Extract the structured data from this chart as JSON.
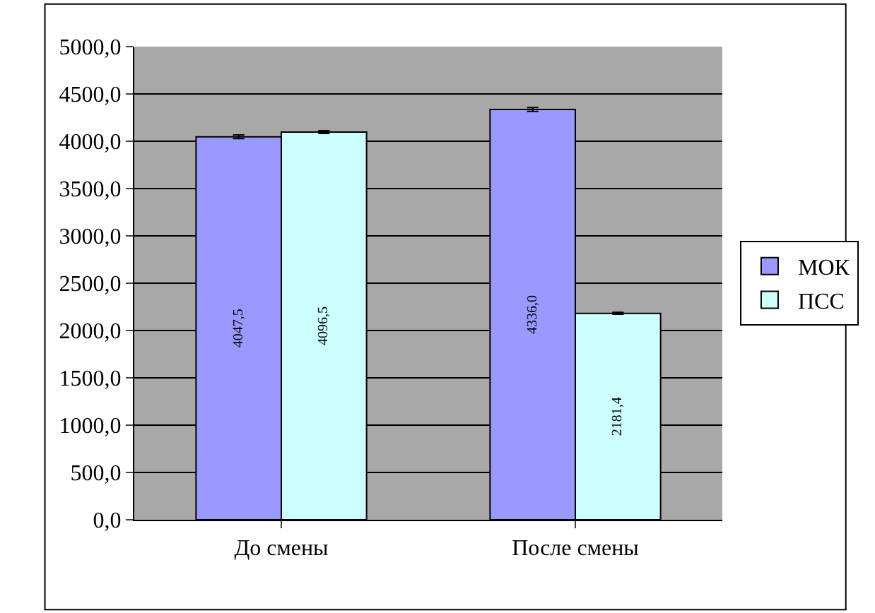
{
  "chart_data": {
    "type": "bar",
    "categories": [
      "До смены",
      "После смены"
    ],
    "series": [
      {
        "name": "МОК",
        "color": "#9999ff",
        "values": [
          4047.5,
          4336.0
        ],
        "errors": [
          20,
          20
        ],
        "value_labels": [
          "4047,5",
          "4336,0"
        ]
      },
      {
        "name": "ПСС",
        "color": "#ccffff",
        "values": [
          4096.5,
          2181.4
        ],
        "errors": [
          15,
          10
        ],
        "value_labels": [
          "4096,5",
          "2181,4"
        ]
      }
    ],
    "ylim": [
      0,
      5000
    ],
    "yticks": [
      {
        "value": 0,
        "label": "0,0"
      },
      {
        "value": 500,
        "label": "500,0"
      },
      {
        "value": 1000,
        "label": "1000,0"
      },
      {
        "value": 1500,
        "label": "1500,0"
      },
      {
        "value": 2000,
        "label": "2000,0"
      },
      {
        "value": 2500,
        "label": "2500,0"
      },
      {
        "value": 3000,
        "label": "3000,0"
      },
      {
        "value": 3500,
        "label": "3500,0"
      },
      {
        "value": 4000,
        "label": "4000,0"
      },
      {
        "value": 4500,
        "label": "4500,0"
      },
      {
        "value": 5000,
        "label": "5000,0"
      }
    ],
    "grid": "y",
    "legend": "right"
  }
}
